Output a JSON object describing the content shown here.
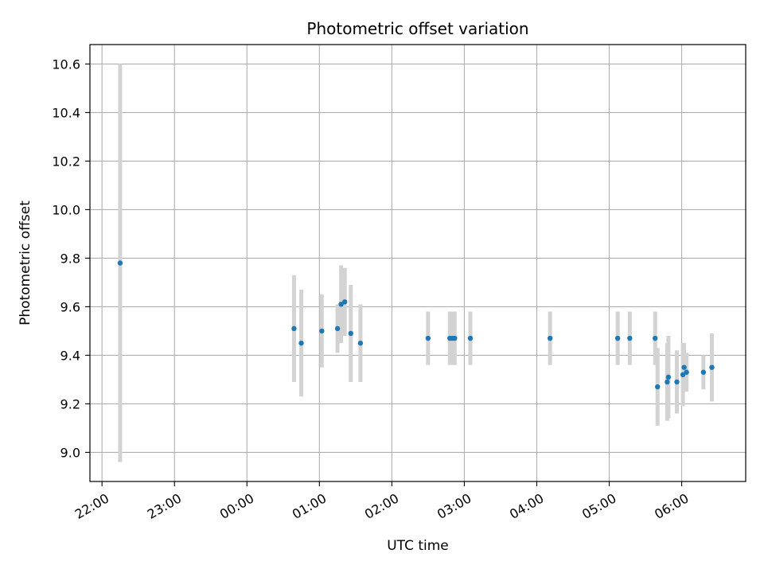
{
  "chart_data": {
    "type": "scatter",
    "title": "Photometric offset variation",
    "xlabel": "UTC time",
    "ylabel": "Photometric offset",
    "x_unit": "time (HH:MM, UTC)",
    "xlim": [
      "21:50",
      "06:53"
    ],
    "ylim": [
      8.88,
      10.68
    ],
    "x_ticks": [
      "22:00",
      "23:00",
      "00:00",
      "01:00",
      "02:00",
      "03:00",
      "04:00",
      "05:00",
      "06:00"
    ],
    "y_ticks": [
      9.0,
      9.2,
      9.4,
      9.6,
      9.8,
      10.0,
      10.2,
      10.4,
      10.6
    ],
    "y_tick_labels": [
      "9.0",
      "9.2",
      "9.4",
      "9.6",
      "9.8",
      "10.0",
      "10.2",
      "10.4",
      "10.6"
    ],
    "grid": true,
    "marker_color": "#1f77b4",
    "errorbar_color": "#d3d3d3",
    "points": [
      {
        "x": "22:15",
        "y": 9.78,
        "err": 0.82
      },
      {
        "x": "00:39",
        "y": 9.51,
        "err": 0.22
      },
      {
        "x": "00:45",
        "y": 9.45,
        "err": 0.22
      },
      {
        "x": "01:02",
        "y": 9.5,
        "err": 0.15
      },
      {
        "x": "01:15",
        "y": 9.51,
        "err": 0.1
      },
      {
        "x": "01:18",
        "y": 9.61,
        "err": 0.16
      },
      {
        "x": "01:21",
        "y": 9.62,
        "err": 0.14
      },
      {
        "x": "01:26",
        "y": 9.49,
        "err": 0.2
      },
      {
        "x": "01:34",
        "y": 9.45,
        "err": 0.16
      },
      {
        "x": "02:30",
        "y": 9.47,
        "err": 0.11
      },
      {
        "x": "02:48",
        "y": 9.47,
        "err": 0.11
      },
      {
        "x": "02:50",
        "y": 9.47,
        "err": 0.11
      },
      {
        "x": "02:52",
        "y": 9.47,
        "err": 0.11
      },
      {
        "x": "03:05",
        "y": 9.47,
        "err": 0.11
      },
      {
        "x": "04:11",
        "y": 9.47,
        "err": 0.11
      },
      {
        "x": "05:07",
        "y": 9.47,
        "err": 0.11
      },
      {
        "x": "05:17",
        "y": 9.47,
        "err": 0.11
      },
      {
        "x": "05:38",
        "y": 9.47,
        "err": 0.11
      },
      {
        "x": "05:40",
        "y": 9.27,
        "err": 0.16
      },
      {
        "x": "05:48",
        "y": 9.29,
        "err": 0.16
      },
      {
        "x": "05:49",
        "y": 9.31,
        "err": 0.17
      },
      {
        "x": "05:56",
        "y": 9.29,
        "err": 0.13
      },
      {
        "x": "06:01",
        "y": 9.32,
        "err": 0.13
      },
      {
        "x": "06:02",
        "y": 9.35,
        "err": 0.1
      },
      {
        "x": "06:04",
        "y": 9.33,
        "err": 0.08
      },
      {
        "x": "06:18",
        "y": 9.33,
        "err": 0.07
      },
      {
        "x": "06:25",
        "y": 9.35,
        "err": 0.14
      }
    ]
  }
}
